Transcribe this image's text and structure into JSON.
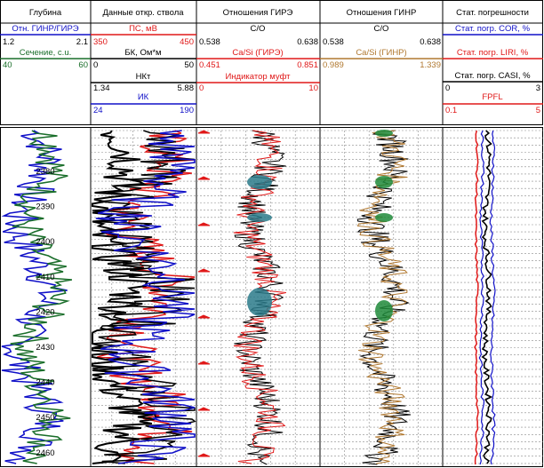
{
  "header": {
    "depth_col_title": "Глубина",
    "well_col_title": "Данные откр. ствола",
    "gire_col_title": "Отношения ГИРЭ",
    "ginr_col_title": "Отношения ГИНР",
    "err_col_title": "Стат. погрешности"
  },
  "depth_col": {
    "ratio_label": "Отн. ГИНР/ГИРЭ",
    "ratio_min": "1.2",
    "ratio_max": "2.1",
    "section_label": "Сечение, с.u.",
    "section_min": "40",
    "section_max": "60"
  },
  "well_col": {
    "ps_label": "ПС, мВ",
    "ps_min": "350",
    "ps_max": "450",
    "bk_label": "БК, Ом*м",
    "bk_min": "0",
    "bk_max": "50",
    "nkt_label": "НКт",
    "ik_label": "ИК",
    "ik_min": "1.34",
    "ik_max": "5.88",
    "ik2_min": "24",
    "ik2_max": "190"
  },
  "gire_col": {
    "co_label": "C/O",
    "co_min": "0.538",
    "co_max": "0.638",
    "casi_label": "Ca/Si (ГИРЭ)",
    "casi_min": "0.451",
    "casi_max": "0.851",
    "muft_label": "Индикатор муфт",
    "muft_min": "0",
    "muft_max": "10"
  },
  "ginr_col": {
    "co_label": "C/O",
    "co_min": "0.538",
    "co_max": "0.638",
    "casi_label": "Ca/Si (ГИНР)",
    "casi_min": "0.989",
    "casi_max": "1.339"
  },
  "err_col": {
    "cor_label": "Стат. погр. COR, %",
    "liri_label": "Стат. погр. LIRI, %",
    "casi_label": "Стат. погр. CASI, %",
    "casi_min": "0",
    "casi_max": "3",
    "fpfl_label": "FPFL",
    "fpfl_min": "0.1",
    "fpfl_max": "5"
  },
  "depth_ticks": [
    "2380",
    "2390",
    "2400",
    "2410",
    "2420",
    "2430",
    "2440",
    "2450",
    "2460"
  ],
  "colors": {
    "blue": "#1010c8",
    "red": "#e01818",
    "green": "#1a6e2a",
    "teal": "#2a7a8a",
    "brown": "#b07830",
    "black": "#000000"
  }
}
